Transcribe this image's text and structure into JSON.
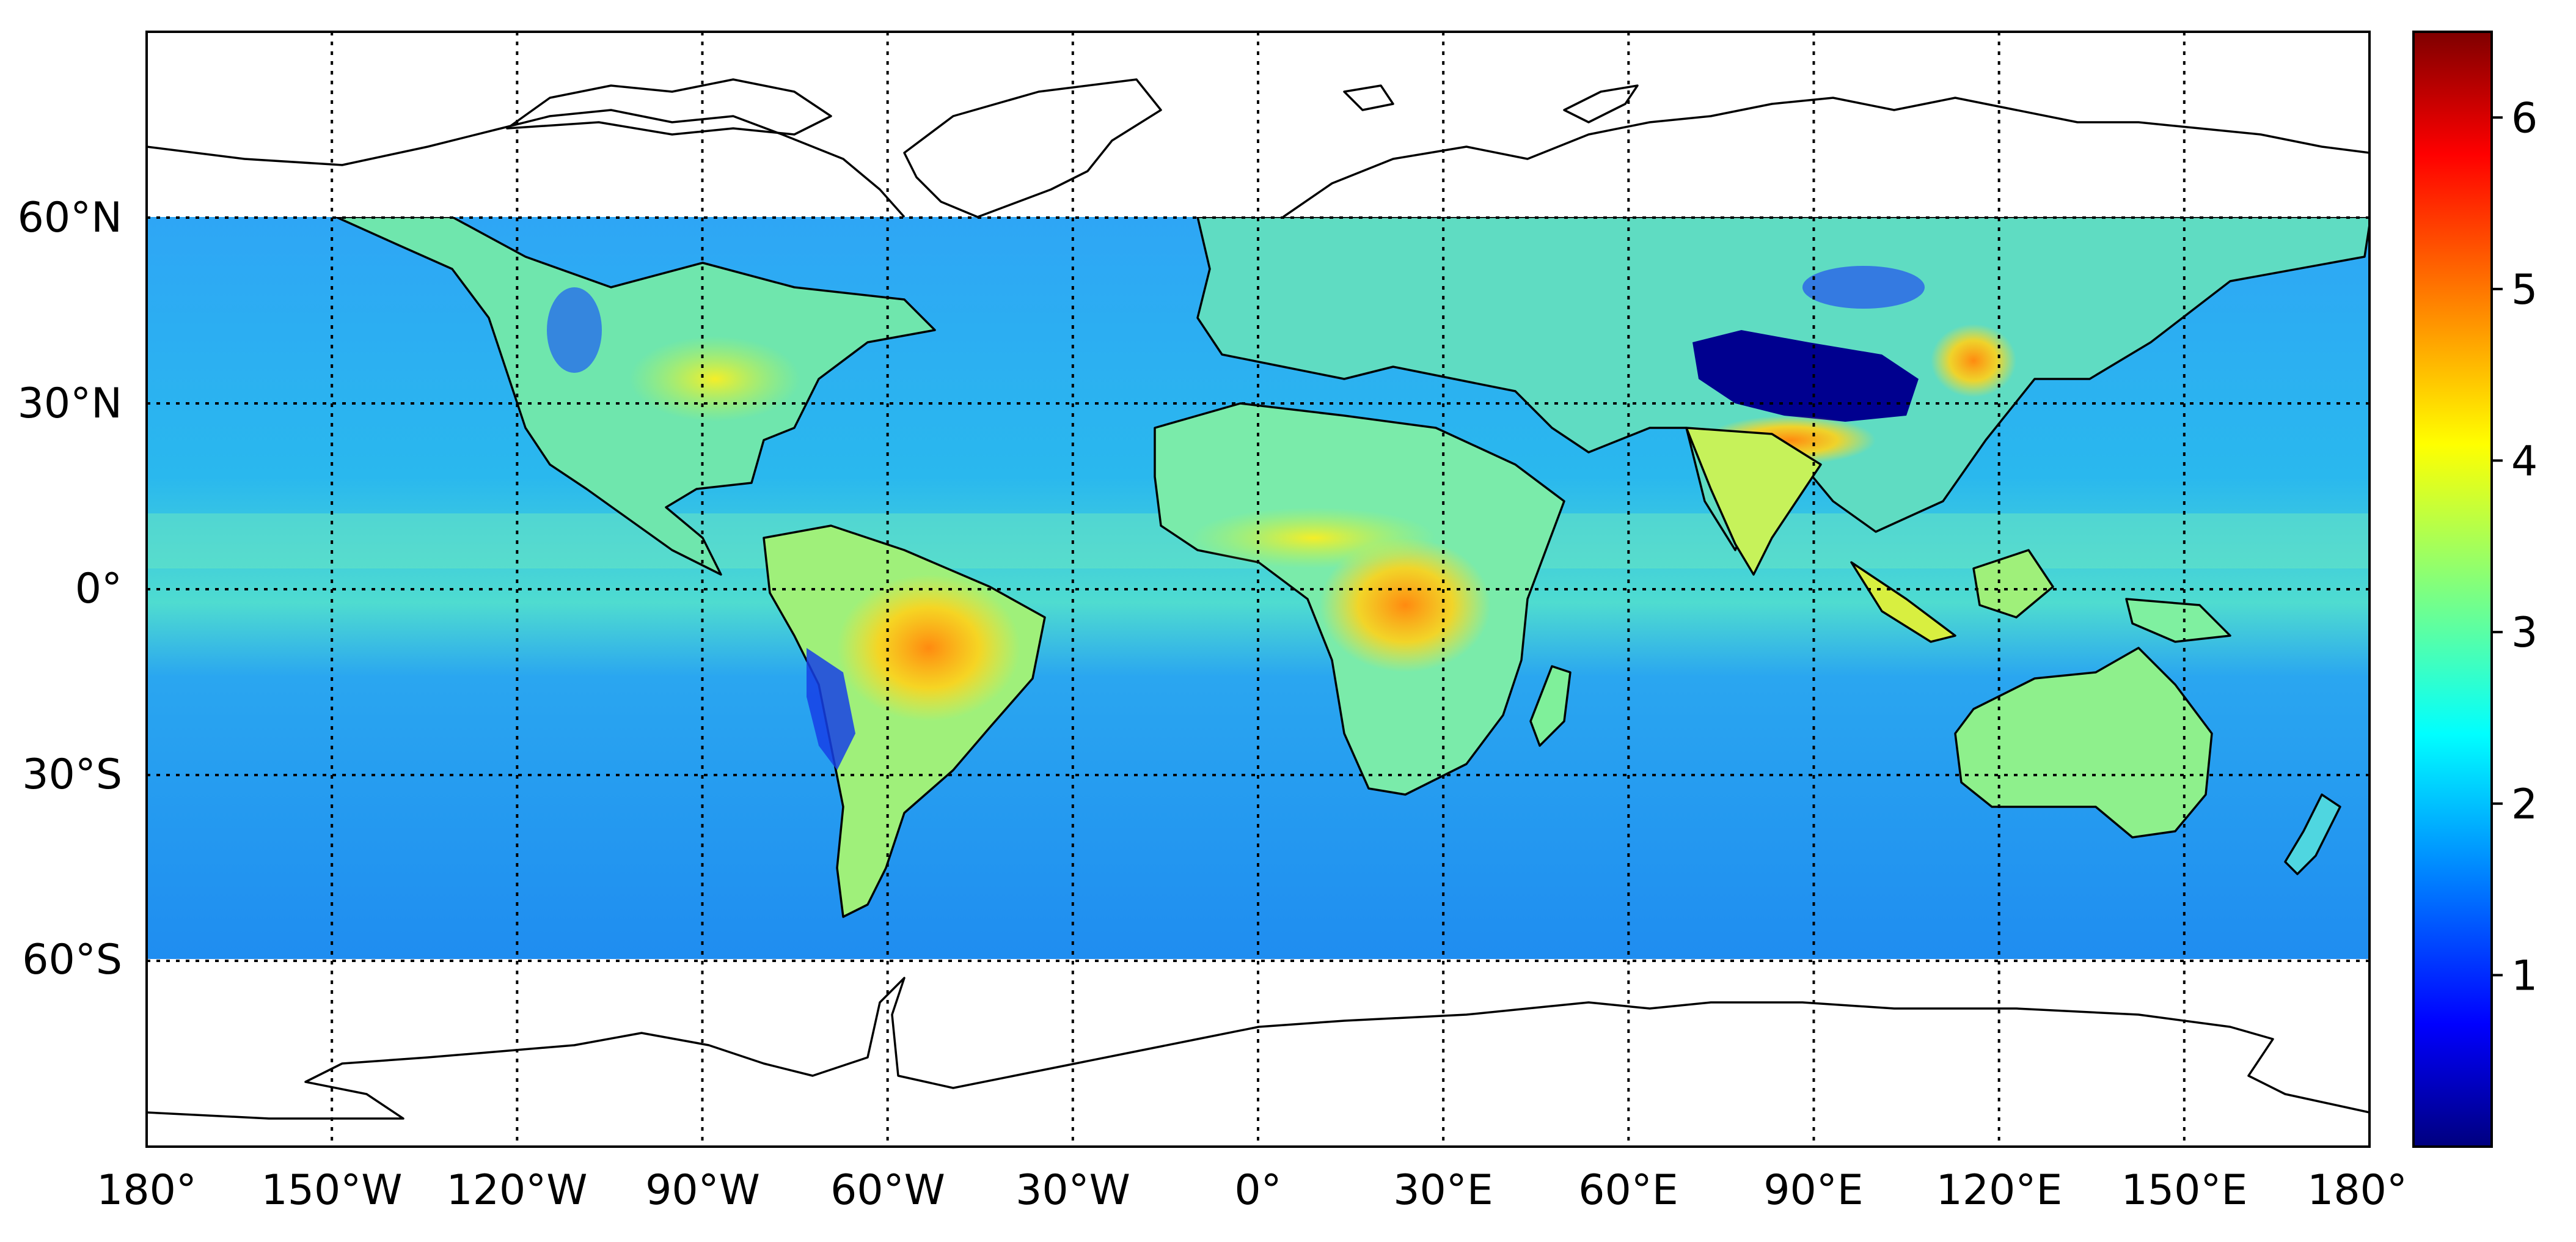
{
  "map": {
    "x_tick_labels": [
      "180°",
      "150°W",
      "120°W",
      "90°W",
      "60°W",
      "30°W",
      "0°",
      "30°E",
      "60°E",
      "90°E",
      "120°E",
      "150°E",
      "180°"
    ],
    "y_tick_labels": [
      "60°N",
      "30°N",
      "0°",
      "30°S",
      "60°S"
    ],
    "lon_range": [
      -180,
      180
    ],
    "lat_range": [
      -90,
      90
    ],
    "data_lat_range": [
      -60,
      60
    ],
    "gridlines": "dotted",
    "colormap": "jet",
    "colormap_stops": [
      "#00007f",
      "#0000ff",
      "#007fff",
      "#00ffff",
      "#7fff7f",
      "#ffff00",
      "#ff7f00",
      "#ff0000",
      "#7f0000"
    ]
  },
  "colorbar": {
    "range": [
      0,
      6.5
    ],
    "tick_labels": [
      "1",
      "2",
      "3",
      "4",
      "5",
      "6"
    ],
    "tick_values": [
      1,
      2,
      3,
      4,
      5,
      6
    ]
  }
}
